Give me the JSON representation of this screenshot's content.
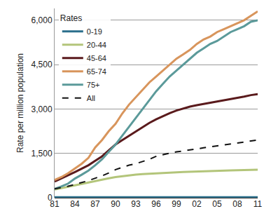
{
  "chart_data": {
    "type": "line",
    "y_label": "Rate per million population",
    "legend_title": "Rates",
    "legend": "top left",
    "grid": true,
    "categories": [
      "81",
      null,
      null,
      "84",
      null,
      null,
      "87",
      null,
      null,
      "90",
      null,
      null,
      "93",
      null,
      null,
      "96",
      null,
      null,
      "99",
      null,
      null,
      "02",
      null,
      null,
      "05",
      null,
      null,
      "08",
      null,
      null,
      "11"
    ],
    "ylim": [
      0,
      6400
    ],
    "yticks": [
      0,
      {
        "value": 1500,
        "label": "1,500"
      },
      {
        "value": 3000,
        "label": "3,000"
      },
      {
        "value": 4500,
        "label": "4,500"
      },
      {
        "value": 6000,
        "label": "6,000"
      }
    ],
    "series": [
      {
        "name": "0-19",
        "color": "#2b6f8c",
        "line_style": "solid",
        "values": [
          20,
          20,
          20,
          20,
          20,
          20,
          20,
          20,
          20,
          20,
          20,
          20,
          20,
          20,
          20,
          20,
          20,
          20,
          20,
          20,
          20,
          20,
          20,
          20,
          20,
          20,
          20,
          20,
          20,
          20,
          20
        ]
      },
      {
        "name": "20-44",
        "color": "#b3c57a",
        "line_style": "solid",
        "values": [
          280,
          320,
          370,
          420,
          470,
          520,
          570,
          620,
          660,
          700,
          730,
          760,
          780,
          800,
          815,
          830,
          840,
          850,
          860,
          870,
          880,
          890,
          900,
          905,
          910,
          920,
          925,
          930,
          935,
          945,
          950
        ]
      },
      {
        "name": "45-64",
        "color": "#5a1a1c",
        "line_style": "solid",
        "values": [
          550,
          650,
          760,
          870,
          980,
          1100,
          1250,
          1400,
          1600,
          1800,
          1950,
          2100,
          2250,
          2400,
          2530,
          2650,
          2760,
          2860,
          2950,
          3020,
          3080,
          3130,
          3170,
          3210,
          3250,
          3290,
          3330,
          3370,
          3420,
          3470,
          3500
        ]
      },
      {
        "name": "65-74",
        "color": "#d8955c",
        "line_style": "solid",
        "values": [
          600,
          700,
          830,
          1000,
          1150,
          1350,
          1700,
          1950,
          2250,
          2500,
          2850,
          3150,
          3400,
          3650,
          3900,
          4100,
          4300,
          4500,
          4700,
          4850,
          5000,
          5200,
          5350,
          5450,
          5600,
          5700,
          5800,
          5900,
          6000,
          6150,
          6300
        ]
      },
      {
        "name": "75+",
        "color": "#5b9a9a",
        "line_style": "solid",
        "values": [
          300,
          380,
          480,
          650,
          780,
          920,
          1100,
          1300,
          1550,
          1800,
          2100,
          2400,
          2700,
          3000,
          3300,
          3600,
          3850,
          4100,
          4300,
          4500,
          4700,
          4900,
          5050,
          5200,
          5300,
          5450,
          5600,
          5700,
          5800,
          5950,
          6000
        ]
      },
      {
        "name": "All",
        "color": "#111111",
        "line_style": "dashed",
        "values": [
          300,
          340,
          390,
          450,
          510,
          580,
          660,
          740,
          840,
          950,
          1030,
          1100,
          1150,
          1220,
          1300,
          1400,
          1460,
          1510,
          1550,
          1580,
          1610,
          1650,
          1690,
          1720,
          1750,
          1780,
          1810,
          1850,
          1880,
          1920,
          1950
        ]
      }
    ]
  }
}
